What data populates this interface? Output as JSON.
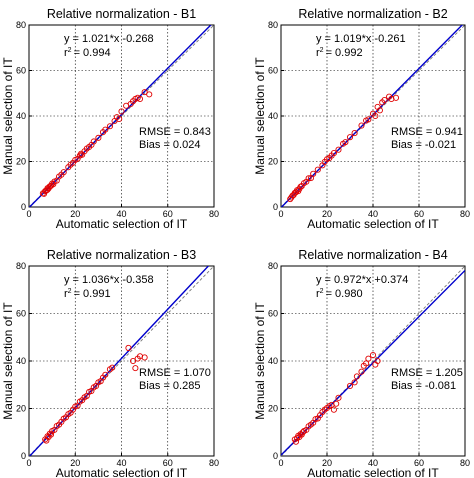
{
  "colors": {
    "fit_line": "#0000cc",
    "identity_line": "#777777",
    "markers": "#e00000",
    "grid": "#000000"
  },
  "chart_data": [
    {
      "type": "scatter",
      "title": "Relative normalization - B1",
      "xlabel": "Automatic selection of IT",
      "ylabel": "Manual selection of IT",
      "xlim": [
        0,
        80
      ],
      "ylim": [
        0,
        80
      ],
      "xticks": [
        "0",
        "20",
        "40",
        "60",
        "80"
      ],
      "yticks": [
        "0",
        "20",
        "40",
        "60",
        "80"
      ],
      "grid": true,
      "equation": "y = 1.021*x -0.268",
      "r2_label": "r",
      "r2_sup": "2",
      "r2_value": "= 0.994",
      "rmse": "RMSE = 0.843",
      "bias": "Bias = 0.024",
      "fit": {
        "slope": 1.021,
        "intercept": -0.268
      },
      "points": [
        [
          6,
          6
        ],
        [
          6.5,
          5.8
        ],
        [
          7,
          7
        ],
        [
          7.5,
          7.2
        ],
        [
          8,
          8.3
        ],
        [
          8,
          7.6
        ],
        [
          8.5,
          8.2
        ],
        [
          9,
          9.1
        ],
        [
          9.5,
          9.3
        ],
        [
          10,
          10.3
        ],
        [
          10.5,
          10
        ],
        [
          11,
          11.2
        ],
        [
          12,
          11.6
        ],
        [
          13,
          13.4
        ],
        [
          14,
          14.2
        ],
        [
          15,
          15.3
        ],
        [
          17,
          17.5
        ],
        [
          18,
          18.6
        ],
        [
          19,
          19.4
        ],
        [
          20,
          20.7
        ],
        [
          21,
          21.2
        ],
        [
          22,
          22.6
        ],
        [
          22.5,
          23.4
        ],
        [
          23,
          23
        ],
        [
          24,
          24.5
        ],
        [
          25,
          25.7
        ],
        [
          26,
          26.4
        ],
        [
          27,
          27.3
        ],
        [
          28,
          28.8
        ],
        [
          30,
          30.4
        ],
        [
          32,
          32.9
        ],
        [
          33,
          34
        ],
        [
          35,
          35.5
        ],
        [
          37,
          37.8
        ],
        [
          38,
          39.5
        ],
        [
          39,
          38.7
        ],
        [
          40,
          42
        ],
        [
          42,
          44.5
        ],
        [
          44,
          45.3
        ],
        [
          45,
          46.5
        ],
        [
          46,
          47.5
        ],
        [
          47,
          48
        ],
        [
          48,
          47.5
        ],
        [
          50,
          50.5
        ],
        [
          52,
          49.5
        ]
      ]
    },
    {
      "type": "scatter",
      "title": "Relative normalization - B2",
      "xlabel": "Automatic selection of IT",
      "ylabel": "Manual selection of IT",
      "xlim": [
        0,
        80
      ],
      "ylim": [
        0,
        80
      ],
      "xticks": [
        "0",
        "20",
        "40",
        "60",
        "80"
      ],
      "yticks": [
        "0",
        "20",
        "40",
        "60",
        "80"
      ],
      "grid": true,
      "equation": "y = 1.019*x -0.261",
      "r2_label": "r",
      "r2_sup": "2",
      "r2_value": "= 0.992",
      "rmse": "RMSE = 0.941",
      "bias": "Bias = -0.021",
      "fit": {
        "slope": 1.019,
        "intercept": -0.261
      },
      "points": [
        [
          4,
          3.5
        ],
        [
          4.5,
          4.2
        ],
        [
          5,
          5
        ],
        [
          5.5,
          5.3
        ],
        [
          6,
          6.2
        ],
        [
          6.5,
          6.5
        ],
        [
          7,
          7.4
        ],
        [
          7.5,
          7
        ],
        [
          8,
          8
        ],
        [
          8.5,
          8.9
        ],
        [
          9,
          9.2
        ],
        [
          10,
          10.5
        ],
        [
          11,
          11.1
        ],
        [
          12,
          12.6
        ],
        [
          13,
          12.7
        ],
        [
          14,
          14.6
        ],
        [
          16,
          16.4
        ],
        [
          18,
          18.3
        ],
        [
          19,
          19.8
        ],
        [
          20,
          21
        ],
        [
          21,
          21.5
        ],
        [
          22,
          22.6
        ],
        [
          23,
          23.7
        ],
        [
          25,
          25.2
        ],
        [
          27,
          27.8
        ],
        [
          28,
          28.5
        ],
        [
          30,
          30.7
        ],
        [
          32,
          32.5
        ],
        [
          35,
          35.8
        ],
        [
          37,
          38
        ],
        [
          38,
          38.5
        ],
        [
          40,
          41
        ],
        [
          41,
          40
        ],
        [
          42,
          44
        ],
        [
          43,
          42.5
        ],
        [
          44,
          46
        ],
        [
          45,
          47
        ],
        [
          47,
          48.5
        ],
        [
          48,
          47.5
        ],
        [
          50,
          48
        ]
      ]
    },
    {
      "type": "scatter",
      "title": "Relative normalization - B3",
      "xlabel": "Automatic selection of IT",
      "ylabel": "Manual selection of IT",
      "xlim": [
        0,
        80
      ],
      "ylim": [
        0,
        80
      ],
      "xticks": [
        "0",
        "20",
        "40",
        "60",
        "80"
      ],
      "yticks": [
        "0",
        "20",
        "40",
        "60",
        "80"
      ],
      "grid": true,
      "equation": "y = 1.036*x -0.358",
      "r2_label": "r",
      "r2_sup": "2",
      "r2_value": "= 0.991",
      "rmse": "RMSE = 1.070",
      "bias": "Bias = 0.285",
      "fit": {
        "slope": 1.036,
        "intercept": -0.358
      },
      "points": [
        [
          7,
          7
        ],
        [
          7.5,
          6.5
        ],
        [
          8,
          8.3
        ],
        [
          8.5,
          8
        ],
        [
          9,
          9.4
        ],
        [
          9.5,
          9
        ],
        [
          10,
          10.5
        ],
        [
          11,
          11
        ],
        [
          12,
          12.6
        ],
        [
          13,
          13.2
        ],
        [
          14,
          14.4
        ],
        [
          15,
          15.7
        ],
        [
          16,
          16.3
        ],
        [
          17,
          17.6
        ],
        [
          18,
          18.2
        ],
        [
          19,
          19.5
        ],
        [
          20,
          20.8
        ],
        [
          21,
          21.2
        ],
        [
          22,
          22.9
        ],
        [
          23,
          23.5
        ],
        [
          24,
          24.7
        ],
        [
          25,
          25.3
        ],
        [
          26,
          27
        ],
        [
          27,
          27.4
        ],
        [
          28,
          28.9
        ],
        [
          29,
          29.5
        ],
        [
          30,
          31
        ],
        [
          31,
          31.5
        ],
        [
          32,
          33
        ],
        [
          33,
          34.2
        ],
        [
          35,
          36.5
        ],
        [
          36,
          37.2
        ],
        [
          43,
          45.5
        ],
        [
          45,
          40
        ],
        [
          46,
          37
        ],
        [
          47,
          41
        ],
        [
          48,
          42
        ],
        [
          50,
          41.5
        ]
      ]
    },
    {
      "type": "scatter",
      "title": "Relative normalization - B4",
      "xlabel": "Automatic selection of IT",
      "ylabel": "Manual selection of IT",
      "xlim": [
        0,
        80
      ],
      "ylim": [
        0,
        80
      ],
      "xticks": [
        "0",
        "20",
        "40",
        "60",
        "80"
      ],
      "yticks": [
        "0",
        "20",
        "40",
        "60",
        "80"
      ],
      "grid": true,
      "equation": "y = 0.972*x +0.374",
      "r2_label": "r",
      "r2_sup": "2",
      "r2_value": "= 0.980",
      "rmse": "RMSE = 1.205",
      "bias": "Bias = -0.081",
      "fit": {
        "slope": 0.972,
        "intercept": 0.374
      },
      "points": [
        [
          6,
          7
        ],
        [
          6.5,
          6
        ],
        [
          7,
          7.5
        ],
        [
          7.5,
          8.5
        ],
        [
          8,
          8
        ],
        [
          8.5,
          9.2
        ],
        [
          9,
          9
        ],
        [
          9.5,
          10
        ],
        [
          10,
          10.5
        ],
        [
          11,
          11
        ],
        [
          12,
          12.5
        ],
        [
          13,
          13.2
        ],
        [
          14,
          14
        ],
        [
          15,
          15.5
        ],
        [
          16,
          15.8
        ],
        [
          17,
          17.2
        ],
        [
          18,
          18.5
        ],
        [
          19,
          19.5
        ],
        [
          20,
          20.2
        ],
        [
          21,
          21
        ],
        [
          22,
          21.5
        ],
        [
          23,
          19.5
        ],
        [
          24,
          22
        ],
        [
          25,
          24.5
        ],
        [
          30,
          29.5
        ],
        [
          32,
          31
        ],
        [
          33,
          33.5
        ],
        [
          35,
          35.5
        ],
        [
          36,
          38
        ],
        [
          37,
          39
        ],
        [
          38,
          41
        ],
        [
          40,
          42.5
        ],
        [
          41,
          38.5
        ],
        [
          42,
          40
        ]
      ]
    }
  ]
}
